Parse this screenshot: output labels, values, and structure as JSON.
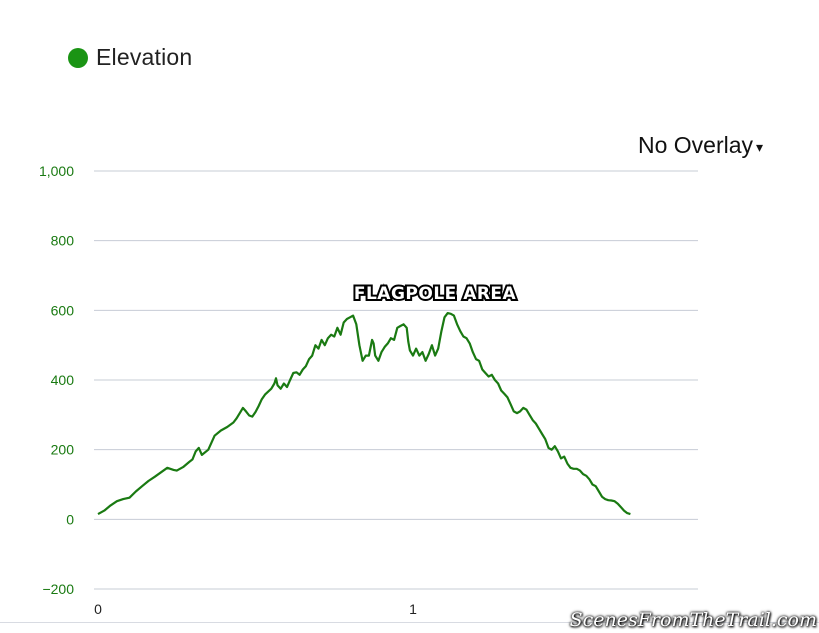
{
  "legend": {
    "label": "Elevation",
    "color": "#1a9414"
  },
  "overlay": {
    "label": "No Overlay",
    "caret": "▾",
    "icon": "caret-down-icon"
  },
  "watermark": "ScenesFromTheTrail.com",
  "chart_data": {
    "type": "line",
    "title": "",
    "xlabel": "",
    "ylabel": "",
    "xlim": [
      0,
      1.9
    ],
    "ylim": [
      -200,
      1000
    ],
    "y_ticks": [
      {
        "value": 1000,
        "label": "1,000"
      },
      {
        "value": 800,
        "label": "800"
      },
      {
        "value": 600,
        "label": "600"
      },
      {
        "value": 400,
        "label": "400"
      },
      {
        "value": 200,
        "label": "200"
      },
      {
        "value": 0,
        "label": "0"
      },
      {
        "value": -200,
        "label": "−200"
      }
    ],
    "x_ticks": [
      {
        "value": 0,
        "label": "0"
      },
      {
        "value": 1,
        "label": "1"
      }
    ],
    "grid": true,
    "legend_position": "top-left",
    "annotations": [
      {
        "text": "FLAGPOLE AREA",
        "x": 1.07,
        "y": 650
      }
    ],
    "series": [
      {
        "name": "Elevation",
        "color": "#1a7a12",
        "points": [
          [
            0.0,
            15
          ],
          [
            0.02,
            25
          ],
          [
            0.04,
            40
          ],
          [
            0.06,
            52
          ],
          [
            0.08,
            58
          ],
          [
            0.1,
            62
          ],
          [
            0.12,
            80
          ],
          [
            0.14,
            95
          ],
          [
            0.16,
            110
          ],
          [
            0.18,
            122
          ],
          [
            0.2,
            135
          ],
          [
            0.22,
            148
          ],
          [
            0.24,
            142
          ],
          [
            0.25,
            140
          ],
          [
            0.27,
            150
          ],
          [
            0.29,
            165
          ],
          [
            0.3,
            172
          ],
          [
            0.31,
            195
          ],
          [
            0.32,
            205
          ],
          [
            0.33,
            185
          ],
          [
            0.35,
            200
          ],
          [
            0.37,
            240
          ],
          [
            0.39,
            255
          ],
          [
            0.41,
            265
          ],
          [
            0.43,
            278
          ],
          [
            0.44,
            290
          ],
          [
            0.45,
            305
          ],
          [
            0.46,
            320
          ],
          [
            0.47,
            310
          ],
          [
            0.48,
            298
          ],
          [
            0.49,
            295
          ],
          [
            0.5,
            308
          ],
          [
            0.51,
            325
          ],
          [
            0.52,
            345
          ],
          [
            0.53,
            358
          ],
          [
            0.55,
            375
          ],
          [
            0.56,
            390
          ],
          [
            0.565,
            405
          ],
          [
            0.57,
            385
          ],
          [
            0.58,
            375
          ],
          [
            0.59,
            390
          ],
          [
            0.6,
            380
          ],
          [
            0.61,
            400
          ],
          [
            0.62,
            420
          ],
          [
            0.63,
            422
          ],
          [
            0.64,
            415
          ],
          [
            0.65,
            430
          ],
          [
            0.66,
            440
          ],
          [
            0.67,
            460
          ],
          [
            0.68,
            470
          ],
          [
            0.69,
            500
          ],
          [
            0.7,
            490
          ],
          [
            0.71,
            515
          ],
          [
            0.72,
            500
          ],
          [
            0.73,
            520
          ],
          [
            0.74,
            530
          ],
          [
            0.75,
            525
          ],
          [
            0.76,
            550
          ],
          [
            0.77,
            530
          ],
          [
            0.78,
            565
          ],
          [
            0.79,
            575
          ],
          [
            0.8,
            580
          ],
          [
            0.81,
            585
          ],
          [
            0.82,
            560
          ],
          [
            0.83,
            500
          ],
          [
            0.84,
            455
          ],
          [
            0.85,
            470
          ],
          [
            0.86,
            470
          ],
          [
            0.87,
            515
          ],
          [
            0.875,
            505
          ],
          [
            0.88,
            470
          ],
          [
            0.89,
            455
          ],
          [
            0.9,
            480
          ],
          [
            0.91,
            495
          ],
          [
            0.92,
            505
          ],
          [
            0.93,
            520
          ],
          [
            0.94,
            515
          ],
          [
            0.95,
            550
          ],
          [
            0.96,
            555
          ],
          [
            0.97,
            560
          ],
          [
            0.98,
            550
          ],
          [
            0.985,
            510
          ],
          [
            0.99,
            485
          ],
          [
            1.0,
            470
          ],
          [
            1.01,
            490
          ],
          [
            1.02,
            470
          ],
          [
            1.03,
            480
          ],
          [
            1.04,
            455
          ],
          [
            1.05,
            475
          ],
          [
            1.06,
            500
          ],
          [
            1.07,
            470
          ],
          [
            1.08,
            490
          ],
          [
            1.09,
            540
          ],
          [
            1.1,
            580
          ],
          [
            1.11,
            592
          ],
          [
            1.12,
            590
          ],
          [
            1.13,
            585
          ],
          [
            1.14,
            560
          ],
          [
            1.15,
            540
          ],
          [
            1.16,
            525
          ],
          [
            1.17,
            520
          ],
          [
            1.18,
            505
          ],
          [
            1.19,
            480
          ],
          [
            1.2,
            460
          ],
          [
            1.21,
            455
          ],
          [
            1.22,
            430
          ],
          [
            1.23,
            420
          ],
          [
            1.24,
            410
          ],
          [
            1.25,
            415
          ],
          [
            1.26,
            400
          ],
          [
            1.27,
            390
          ],
          [
            1.28,
            370
          ],
          [
            1.29,
            360
          ],
          [
            1.3,
            350
          ],
          [
            1.31,
            330
          ],
          [
            1.32,
            310
          ],
          [
            1.33,
            305
          ],
          [
            1.34,
            310
          ],
          [
            1.35,
            320
          ],
          [
            1.36,
            315
          ],
          [
            1.37,
            300
          ],
          [
            1.38,
            285
          ],
          [
            1.39,
            275
          ],
          [
            1.4,
            260
          ],
          [
            1.41,
            245
          ],
          [
            1.42,
            230
          ],
          [
            1.43,
            205
          ],
          [
            1.44,
            200
          ],
          [
            1.45,
            210
          ],
          [
            1.46,
            195
          ],
          [
            1.47,
            175
          ],
          [
            1.48,
            180
          ],
          [
            1.49,
            160
          ],
          [
            1.5,
            148
          ],
          [
            1.51,
            145
          ],
          [
            1.52,
            145
          ],
          [
            1.53,
            140
          ],
          [
            1.54,
            130
          ],
          [
            1.55,
            125
          ],
          [
            1.56,
            115
          ],
          [
            1.57,
            100
          ],
          [
            1.58,
            95
          ],
          [
            1.59,
            80
          ],
          [
            1.6,
            65
          ],
          [
            1.61,
            58
          ],
          [
            1.62,
            55
          ],
          [
            1.63,
            54
          ],
          [
            1.64,
            52
          ],
          [
            1.65,
            45
          ],
          [
            1.66,
            35
          ],
          [
            1.67,
            25
          ],
          [
            1.68,
            18
          ],
          [
            1.69,
            15
          ]
        ]
      }
    ]
  }
}
